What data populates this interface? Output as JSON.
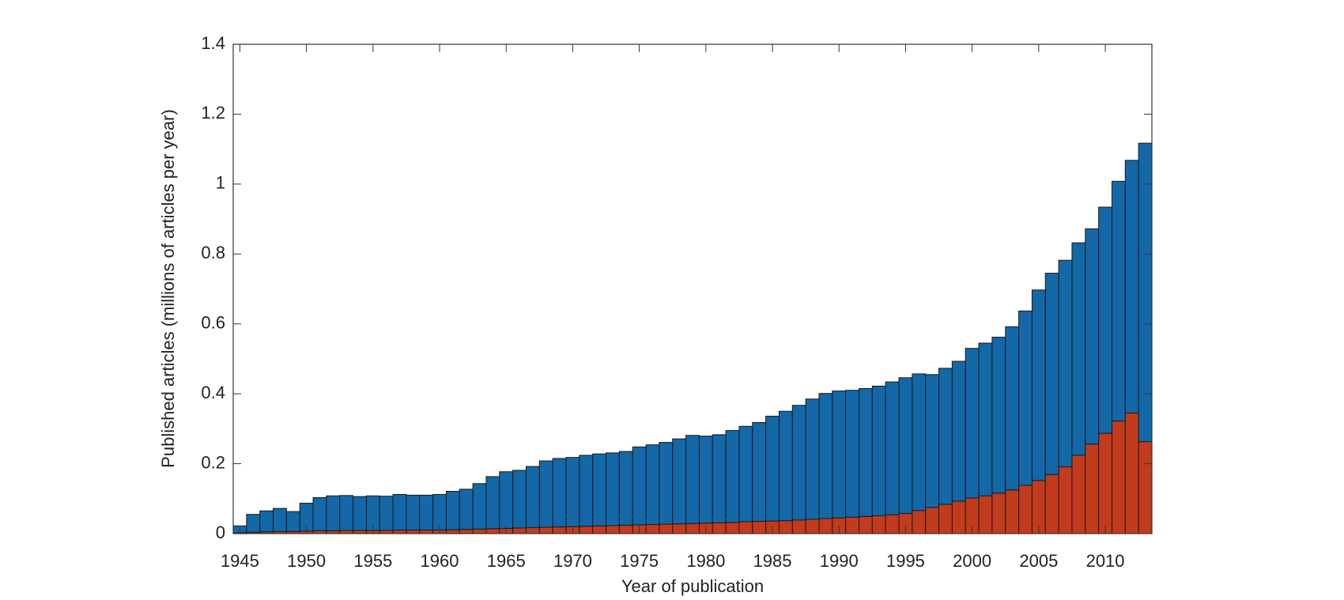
{
  "chart_data": {
    "type": "stacked_bar",
    "xlabel": "Year of publication",
    "ylabel": "Published articles (millions of articles per year)",
    "x": [
      1945,
      1946,
      1947,
      1948,
      1949,
      1950,
      1951,
      1952,
      1953,
      1954,
      1955,
      1956,
      1957,
      1958,
      1959,
      1960,
      1961,
      1962,
      1963,
      1964,
      1965,
      1966,
      1967,
      1968,
      1969,
      1970,
      1971,
      1972,
      1973,
      1974,
      1975,
      1976,
      1977,
      1978,
      1979,
      1980,
      1981,
      1982,
      1983,
      1984,
      1985,
      1986,
      1987,
      1988,
      1989,
      1990,
      1991,
      1992,
      1993,
      1994,
      1995,
      1996,
      1997,
      1998,
      1999,
      2000,
      2001,
      2002,
      2003,
      2004,
      2005,
      2006,
      2007,
      2008,
      2009,
      2010,
      2011,
      2012,
      2013
    ],
    "series": [
      {
        "color": "#c23b1c",
        "values": [
          0.002,
          0.004,
          0.005,
          0.006,
          0.006,
          0.007,
          0.008,
          0.008,
          0.009,
          0.009,
          0.009,
          0.009,
          0.01,
          0.01,
          0.01,
          0.01,
          0.011,
          0.012,
          0.013,
          0.014,
          0.015,
          0.016,
          0.017,
          0.018,
          0.019,
          0.02,
          0.021,
          0.022,
          0.023,
          0.024,
          0.025,
          0.026,
          0.027,
          0.028,
          0.029,
          0.03,
          0.031,
          0.032,
          0.034,
          0.035,
          0.036,
          0.037,
          0.039,
          0.041,
          0.043,
          0.045,
          0.047,
          0.049,
          0.051,
          0.054,
          0.058,
          0.066,
          0.075,
          0.084,
          0.093,
          0.102,
          0.108,
          0.116,
          0.125,
          0.138,
          0.152,
          0.169,
          0.191,
          0.224,
          0.256,
          0.287,
          0.322,
          0.345,
          0.263
        ]
      },
      {
        "color": "#1368a8",
        "values": [
          0.02,
          0.051,
          0.06,
          0.066,
          0.057,
          0.08,
          0.095,
          0.1,
          0.1,
          0.097,
          0.099,
          0.098,
          0.102,
          0.1,
          0.1,
          0.102,
          0.11,
          0.115,
          0.13,
          0.149,
          0.162,
          0.165,
          0.175,
          0.19,
          0.196,
          0.198,
          0.203,
          0.206,
          0.208,
          0.211,
          0.223,
          0.228,
          0.234,
          0.243,
          0.252,
          0.249,
          0.252,
          0.263,
          0.273,
          0.283,
          0.3,
          0.313,
          0.328,
          0.344,
          0.358,
          0.363,
          0.363,
          0.366,
          0.371,
          0.38,
          0.388,
          0.391,
          0.38,
          0.389,
          0.4,
          0.428,
          0.437,
          0.446,
          0.467,
          0.499,
          0.545,
          0.576,
          0.591,
          0.608,
          0.616,
          0.647,
          0.686,
          0.723,
          0.854
        ]
      }
    ],
    "xlim": [
      1944.5,
      2013.5
    ],
    "xticks": [
      1945,
      1950,
      1955,
      1960,
      1965,
      1970,
      1975,
      1980,
      1985,
      1990,
      1995,
      2000,
      2005,
      2010
    ],
    "ylim": [
      0,
      1.4
    ],
    "yticks": [
      0,
      0.2,
      0.4,
      0.6,
      0.8,
      1,
      1.2,
      1.4
    ]
  }
}
